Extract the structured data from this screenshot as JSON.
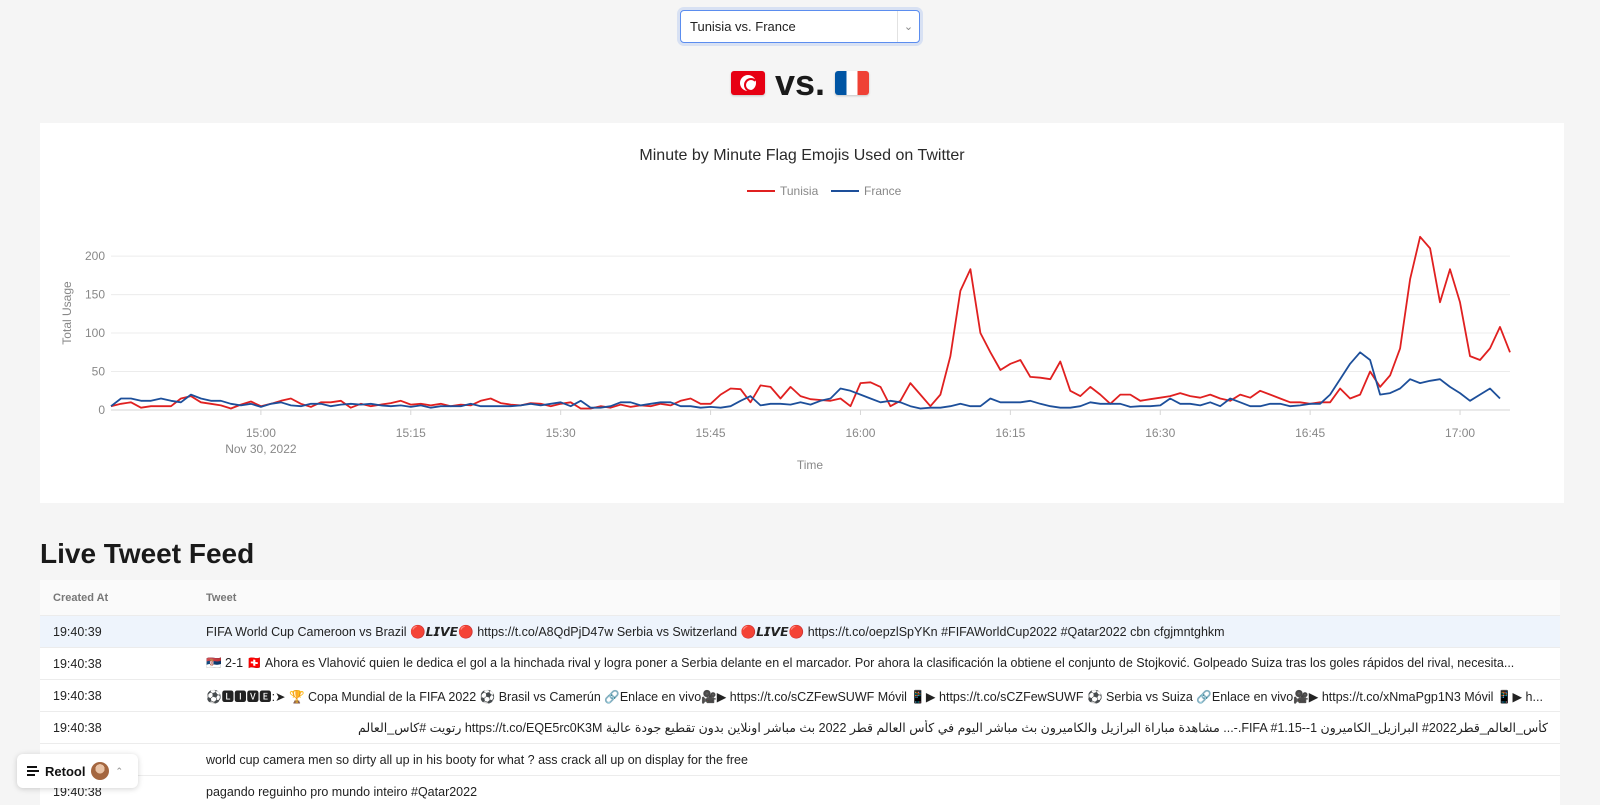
{
  "match_select": {
    "value": "Tunisia vs. France"
  },
  "versus": {
    "home_flag": "flag-tunisia",
    "away_flag": "flag-france",
    "separator": "vs."
  },
  "chart_data": {
    "type": "line",
    "title": "Minute by Minute Flag Emojis Used on Twitter",
    "xlabel": "Time",
    "ylabel": "Total Usage",
    "ylim": [
      0,
      230
    ],
    "yticks": [
      0,
      50,
      100,
      150,
      200
    ],
    "xticks": [
      {
        "minute": 15,
        "label": "15:00",
        "sublabel": "Nov 30, 2022"
      },
      {
        "minute": 30,
        "label": "15:15"
      },
      {
        "minute": 45,
        "label": "15:30"
      },
      {
        "minute": 60,
        "label": "15:45"
      },
      {
        "minute": 75,
        "label": "16:00"
      },
      {
        "minute": 90,
        "label": "16:15"
      },
      {
        "minute": 105,
        "label": "16:30"
      },
      {
        "minute": 120,
        "label": "16:45"
      },
      {
        "minute": 135,
        "label": "17:00"
      }
    ],
    "x_start": "14:56",
    "x_step_minutes": 1,
    "grid": true,
    "legend_position": "top-center",
    "series": [
      {
        "name": "Tunisia",
        "color": "#e02020",
        "values": [
          5,
          8,
          10,
          3,
          5,
          5,
          5,
          15,
          18,
          10,
          8,
          6,
          2,
          7,
          11,
          5,
          8,
          12,
          15,
          8,
          4,
          10,
          10,
          12,
          3,
          8,
          5,
          7,
          9,
          12,
          7,
          8,
          6,
          8,
          5,
          7,
          6,
          12,
          15,
          9,
          7,
          6,
          9,
          8,
          5,
          8,
          10,
          2,
          2,
          5,
          3,
          7,
          4,
          6,
          5,
          8,
          6,
          12,
          15,
          8,
          8,
          20,
          28,
          27,
          10,
          32,
          30,
          15,
          30,
          18,
          14,
          13,
          12,
          15,
          5,
          35,
          36,
          30,
          5,
          12,
          35,
          20,
          5,
          20,
          70,
          155,
          183,
          100,
          75,
          52,
          60,
          65,
          43,
          42,
          40,
          63,
          25,
          18,
          30,
          20,
          8,
          20,
          20,
          12,
          14,
          16,
          18,
          22,
          18,
          16,
          20,
          15,
          12,
          20,
          16,
          25,
          20,
          15,
          10,
          10,
          8,
          10,
          10,
          28,
          15,
          20,
          50,
          30,
          45,
          80,
          170,
          225,
          210,
          140,
          183,
          140,
          70,
          65,
          80,
          108,
          75
        ]
      },
      {
        "name": "France",
        "color": "#1d4f9a",
        "values": [
          5,
          15,
          15,
          12,
          12,
          15,
          12,
          10,
          20,
          15,
          12,
          12,
          8,
          6,
          8,
          4,
          8,
          10,
          6,
          5,
          8,
          8,
          5,
          7,
          8,
          7,
          8,
          6,
          5,
          6,
          4,
          6,
          3,
          5,
          5,
          5,
          8,
          5,
          5,
          5,
          5,
          6,
          8,
          6,
          8,
          10,
          5,
          12,
          3,
          3,
          5,
          10,
          10,
          6,
          8,
          10,
          10,
          5,
          5,
          3,
          4,
          3,
          5,
          12,
          18,
          6,
          8,
          8,
          7,
          10,
          7,
          12,
          15,
          28,
          25,
          20,
          15,
          10,
          12,
          10,
          5,
          2,
          3,
          3,
          5,
          8,
          5,
          5,
          15,
          10,
          10,
          10,
          12,
          8,
          5,
          3,
          3,
          5,
          10,
          8,
          8,
          8,
          4,
          5,
          5,
          6,
          15,
          8,
          8,
          6,
          10,
          5,
          15,
          10,
          5,
          5,
          8,
          8,
          5,
          6,
          8,
          8,
          20,
          40,
          60,
          75,
          65,
          20,
          22,
          28,
          40,
          35,
          38,
          40,
          30,
          22,
          12,
          20,
          28,
          15
        ]
      }
    ]
  },
  "feed": {
    "title": "Live Tweet Feed",
    "columns": {
      "created_at": "Created At",
      "tweet": "Tweet"
    },
    "rows": [
      {
        "created_at": "19:40:39",
        "tweet": "FIFA World Cup Cameroon vs Brazil 🔴𝙇𝙄𝙑𝙀🔴 https://t.co/A8QdPjD47w Serbia vs Switzerland 🔴𝙇𝙄𝙑𝙀🔴 https://t.co/oepzlSpYKn #FIFAWorldCup2022 #Qatar2022 cbn cfgjmntghkm"
      },
      {
        "created_at": "19:40:38",
        "tweet": "🇷🇸 2-1 🇨🇭 Ahora es Vlahović quien le dedica el gol a la hinchada rival y logra poner a Serbia delante en el marcador. Por ahora la clasificación la obtiene el conjunto de Stojković. Golpeado Suiza tras los goles rápidos del rival, necesita..."
      },
      {
        "created_at": "19:40:38",
        "tweet": "⚽🅻🅸🆅🅴:➤ 🏆 Copa Mundial de la FIFA 2022 ⚽ Brasil vs Camerún 🔗Enlace en vivo🎥▶ https://t.co/sCZFewSUWF Móvil 📱▶ https://t.co/sCZFewSUWF ⚽ Serbia vs Suiza 🔗Enlace en vivo🎥▶ https://t.co/xNmaPgp1N3 Móvil 📱▶ h..."
      },
      {
        "created_at": "19:40:38",
        "tweet": "كأس_العالم_قطر2022# البرازيل_الكاميرون FIFA #1.15--1.-... مشاهدة مباراة البرازيل والكاميرون بث مباشر اليوم في كأس العالم قطر 2022 بث مباشر اونلاين بدون تقطيع جودة عالية https://t.co/EQE5rc0K3M رتويت #كاس_العالم"
      },
      {
        "created_at": "",
        "tweet": "world cup camera men so dirty all up in his booty for what ? ass crack all up on display for the free"
      },
      {
        "created_at": "19:40:38",
        "tweet": "pagando reguinho pro mundo inteiro #Qatar2022"
      }
    ]
  },
  "retool_badge": {
    "label": "Retool"
  }
}
